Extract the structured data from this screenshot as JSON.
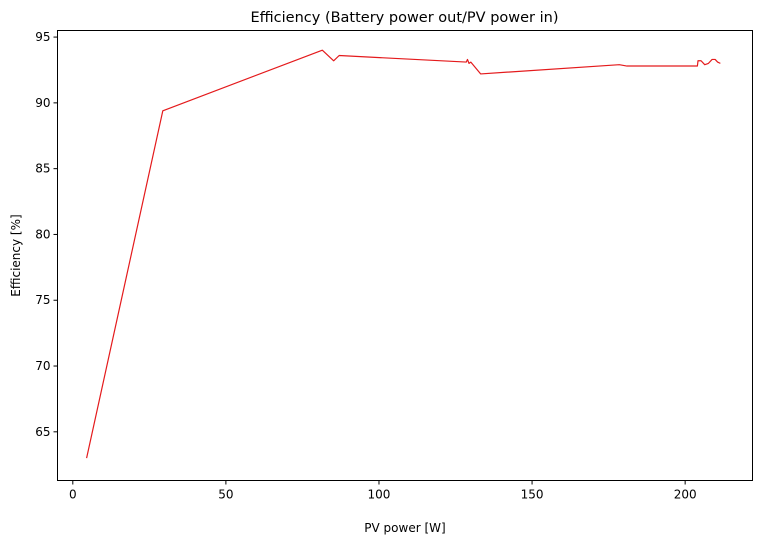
{
  "chart_data": {
    "type": "line",
    "title": "Efficiency (Battery power out/PV power in)",
    "xlabel": "PV power [W]",
    "ylabel": "Efficiency [%]",
    "xlim": [
      -5,
      222
    ],
    "ylim": [
      61.3,
      95.5
    ],
    "xticks": [
      0,
      50,
      100,
      150,
      200
    ],
    "yticks": [
      65,
      70,
      75,
      80,
      85,
      90,
      95
    ],
    "grid": false,
    "series": [
      {
        "color": "#e41a1c",
        "x": [
          4.5,
          29.4,
          81.5,
          85.2,
          87.0,
          128.5,
          128.9,
          129.4,
          130.0,
          133.2,
          178.5,
          181.0,
          204.0,
          204.2,
          205.2,
          206.4,
          207.6,
          208.8,
          209.8,
          210.6,
          211.5
        ],
        "y": [
          63.0,
          89.4,
          94.0,
          93.2,
          93.6,
          93.1,
          93.3,
          93.0,
          93.1,
          92.2,
          92.9,
          92.8,
          92.8,
          93.2,
          93.2,
          92.9,
          93.0,
          93.3,
          93.3,
          93.1,
          93.0
        ]
      }
    ]
  }
}
